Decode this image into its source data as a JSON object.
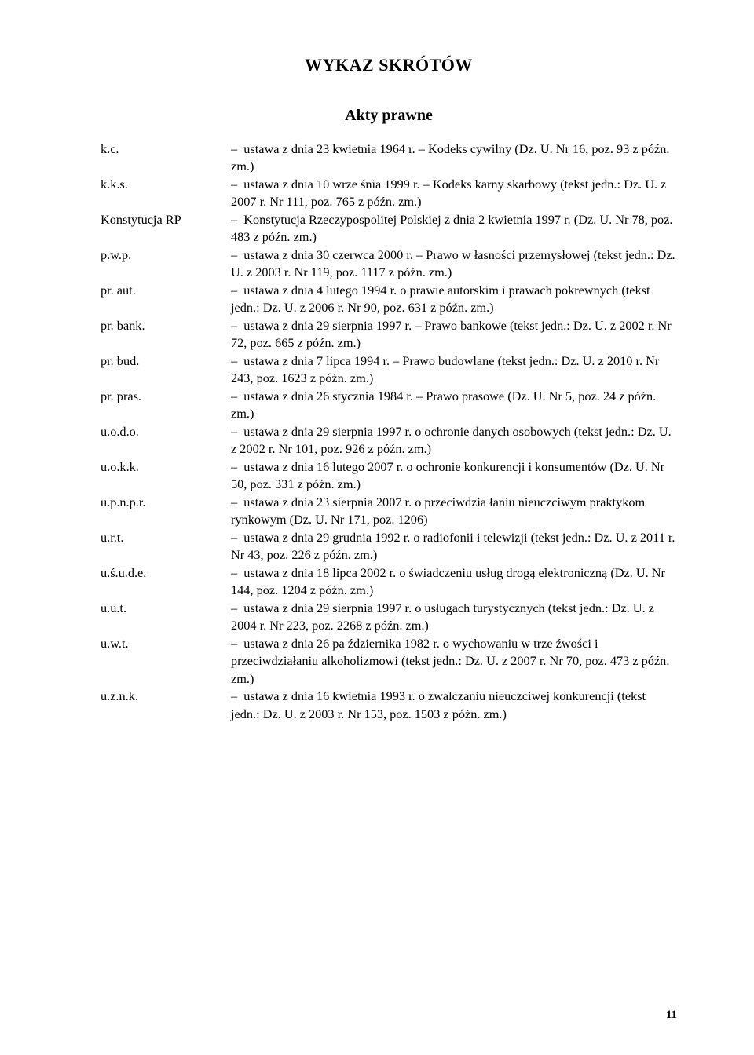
{
  "heading": "WYKAZ SKRÓTÓW",
  "sectionTitle": "Akty prawne",
  "entries": [
    {
      "abbr": "k.c.",
      "desc": "ustawa z dnia 23 kwietnia 1964 r. – Kodeks cywilny (Dz. U. Nr 16, poz. 93 z późn. zm.)"
    },
    {
      "abbr": "k.k.s.",
      "desc": "ustawa z dnia 10 wrze śnia 1999 r. – Kodeks karny skarbowy (tekst jedn.: Dz. U. z 2007 r. Nr 111, poz. 765 z późn. zm.)"
    },
    {
      "abbr": "Konstytucja RP",
      "desc": "Konstytucja Rzeczypospolitej Polskiej z dnia 2 kwietnia 1997 r. (Dz. U. Nr 78, poz. 483 z późn. zm.)"
    },
    {
      "abbr": "p.w.p.",
      "desc": "ustawa z dnia 30 czerwca 2000 r. – Prawo w   łasności przemysłowej (tekst jedn.: Dz. U. z 2003 r. Nr 119, poz. 1117 z późn. zm.)"
    },
    {
      "abbr": "pr. aut.",
      "desc": "ustawa z dnia 4 lutego 1994 r. o prawie autorskim i prawach pokrewnych (tekst jedn.: Dz. U. z 2006 r. Nr 90, poz. 631 z późn. zm.)"
    },
    {
      "abbr": "pr. bank.",
      "desc": "ustawa z dnia 29 sierpnia 1997 r. – Prawo bankowe (tekst jedn.: Dz. U. z 2002 r. Nr 72, poz. 665 z późn. zm.)"
    },
    {
      "abbr": "pr. bud.",
      "desc": "ustawa z dnia 7 lipca 1994 r. – Prawo budowlane (tekst jedn.: Dz. U. z 2010 r. Nr 243, poz. 1623 z późn. zm.)"
    },
    {
      "abbr": "pr. pras.",
      "desc": "ustawa z dnia 26 stycznia 1984 r. – Prawo prasowe (Dz. U. Nr 5, poz. 24 z późn. zm.)"
    },
    {
      "abbr": "u.o.d.o.",
      "desc": "ustawa z dnia 29 sierpnia 1997 r. o ochronie danych osobowych (tekst jedn.: Dz. U. z 2002 r. Nr 101, poz. 926 z późn. zm.)"
    },
    {
      "abbr": "u.o.k.k.",
      "desc": "ustawa z dnia 16 lutego 2007 r. o ochronie konkurencji i konsumentów (Dz. U. Nr 50, poz. 331 z późn. zm.)"
    },
    {
      "abbr": "u.p.n.p.r.",
      "desc": "ustawa z dnia 23 sierpnia 2007 r. o przeciwdzia   łaniu nieuczciwym praktykom rynkowym (Dz. U. Nr 171, poz. 1206)"
    },
    {
      "abbr": "u.r.t.",
      "desc": "ustawa z dnia 29 grudnia 1992 r. o radiofonii i telewizji (tekst jedn.: Dz. U. z 2011 r. Nr 43, poz. 226 z późn. zm.)"
    },
    {
      "abbr": "u.ś.u.d.e.",
      "desc": "ustawa z dnia 18 lipca 2002 r. o świadczeniu usług drogą elektroniczną (Dz. U. Nr 144, poz. 1204 z późn. zm.)"
    },
    {
      "abbr": "u.u.t.",
      "desc": "ustawa z dnia 29 sierpnia 1997 r. o usługach turystycznych (tekst jedn.: Dz. U. z 2004 r. Nr 223, poz. 2268 z późn. zm.)"
    },
    {
      "abbr": "u.w.t.",
      "desc": "ustawa z dnia 26 pa ździernika 1982 r. o wychowaniu w trze źwości i przeciwdziałaniu alkoholizmowi (tekst jedn.: Dz. U. z 2007 r. Nr 70, poz. 473 z późn. zm.)"
    },
    {
      "abbr": "u.z.n.k.",
      "desc": "ustawa z dnia 16 kwietnia 1993 r. o zwalczaniu nieuczciwej konkurencji (tekst jedn.: Dz. U. z 2003 r. Nr 153, poz. 1503 z późn. zm.)"
    }
  ],
  "pageNumber": "11"
}
